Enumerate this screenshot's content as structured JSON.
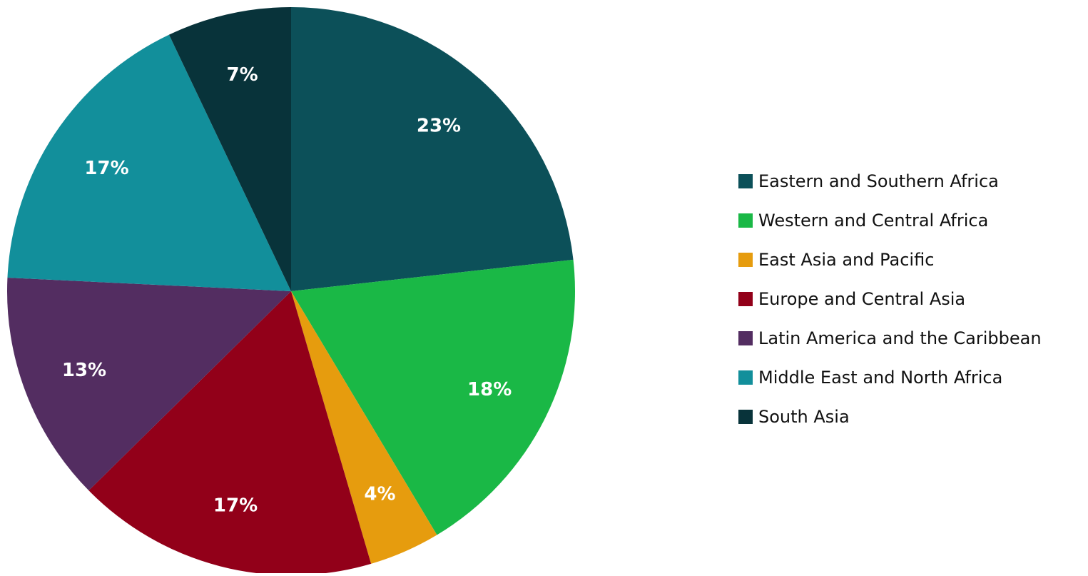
{
  "chart_data": {
    "type": "pie",
    "title": "",
    "slices": [
      {
        "name": "Eastern and Southern Africa",
        "value": 23,
        "label": "23%",
        "color": "#0c5059"
      },
      {
        "name": "Western and Central Africa",
        "value": 18,
        "label": "18%",
        "color": "#1ab846"
      },
      {
        "name": "East Asia and Pacific",
        "value": 4,
        "label": "4%",
        "color": "#e69c0e"
      },
      {
        "name": "Europe and Central Asia",
        "value": 17,
        "label": "17%",
        "color": "#920019"
      },
      {
        "name": "Latin America and the Caribbean",
        "value": 13,
        "label": "13%",
        "color": "#532d61"
      },
      {
        "name": "Middle East and North Africa",
        "value": 17,
        "label": "17%",
        "color": "#128f9b"
      },
      {
        "name": "South Asia",
        "value": 7,
        "label": "7%",
        "color": "#08333a"
      }
    ],
    "legend_position": "right",
    "start": "top, clockwise",
    "value_unit": "%"
  }
}
